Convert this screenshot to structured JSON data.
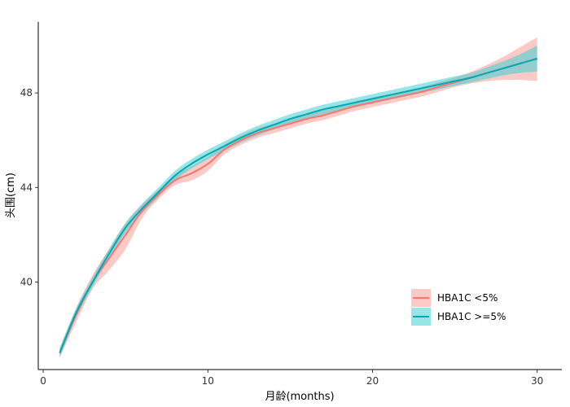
{
  "chart_data": {
    "type": "line",
    "title": "",
    "xlabel": "月龄(months)",
    "ylabel": "头围(cm)",
    "xlim": [
      -0.3,
      31.5
    ],
    "ylim": [
      36.3,
      51.0
    ],
    "xticks": [
      0,
      10,
      20,
      30
    ],
    "yticks": [
      40,
      44,
      48
    ],
    "grid": false,
    "legend_position": "bottom-right",
    "series": [
      {
        "name": "HBA1C <5%",
        "color": "#F8766D",
        "fill": "#F8A6A0",
        "x": [
          1,
          2,
          3,
          4,
          5,
          6,
          7,
          8,
          9,
          10,
          11,
          12,
          13,
          14,
          15,
          16,
          17,
          18,
          19,
          20,
          21,
          22,
          23,
          24,
          25,
          26,
          27,
          28,
          29,
          30
        ],
        "y": [
          37.0,
          38.6,
          40.0,
          41.0,
          42.0,
          43.0,
          43.7,
          44.3,
          44.6,
          45.0,
          45.6,
          46.0,
          46.3,
          46.5,
          46.7,
          46.9,
          47.05,
          47.25,
          47.45,
          47.6,
          47.75,
          47.9,
          48.05,
          48.25,
          48.45,
          48.65,
          48.85,
          49.05,
          49.25,
          49.45
        ],
        "lower": [
          36.8,
          38.3,
          39.7,
          40.5,
          41.4,
          42.7,
          43.5,
          44.1,
          44.3,
          44.7,
          45.4,
          45.8,
          46.1,
          46.3,
          46.5,
          46.7,
          46.85,
          47.05,
          47.25,
          47.4,
          47.55,
          47.7,
          47.85,
          48.05,
          48.25,
          48.4,
          48.5,
          48.55,
          48.55,
          48.5
        ],
        "upper": [
          37.2,
          38.9,
          40.3,
          41.4,
          42.5,
          43.3,
          43.9,
          44.5,
          44.9,
          45.3,
          45.8,
          46.2,
          46.5,
          46.7,
          46.9,
          47.1,
          47.25,
          47.45,
          47.65,
          47.8,
          47.95,
          48.1,
          48.25,
          48.45,
          48.65,
          48.9,
          49.2,
          49.55,
          49.95,
          50.35
        ]
      },
      {
        "name": "HBA1C >=5%",
        "color": "#00A9B5",
        "fill": "#40D0D4",
        "x": [
          1,
          2,
          3,
          4,
          5,
          6,
          7,
          8,
          9,
          10,
          11,
          12,
          13,
          14,
          15,
          16,
          17,
          18,
          19,
          20,
          21,
          22,
          23,
          24,
          25,
          26,
          27,
          28,
          29,
          30
        ],
        "y": [
          37.0,
          38.7,
          40.0,
          41.2,
          42.3,
          43.1,
          43.8,
          44.5,
          45.0,
          45.4,
          45.75,
          46.1,
          46.4,
          46.65,
          46.9,
          47.1,
          47.3,
          47.45,
          47.6,
          47.75,
          47.9,
          48.05,
          48.2,
          48.35,
          48.5,
          48.65,
          48.85,
          49.05,
          49.25,
          49.45
        ],
        "lower": [
          36.8,
          38.5,
          39.8,
          41.0,
          42.1,
          42.9,
          43.6,
          44.3,
          44.8,
          45.2,
          45.55,
          45.9,
          46.2,
          46.45,
          46.7,
          46.9,
          47.1,
          47.25,
          47.4,
          47.55,
          47.7,
          47.85,
          48.0,
          48.15,
          48.3,
          48.45,
          48.6,
          48.75,
          48.85,
          48.9
        ],
        "upper": [
          37.2,
          38.9,
          40.2,
          41.4,
          42.5,
          43.3,
          44.0,
          44.7,
          45.2,
          45.6,
          45.95,
          46.3,
          46.6,
          46.85,
          47.1,
          47.3,
          47.5,
          47.65,
          47.8,
          47.95,
          48.1,
          48.25,
          48.4,
          48.55,
          48.7,
          48.85,
          49.1,
          49.35,
          49.65,
          50.0
        ]
      }
    ]
  }
}
